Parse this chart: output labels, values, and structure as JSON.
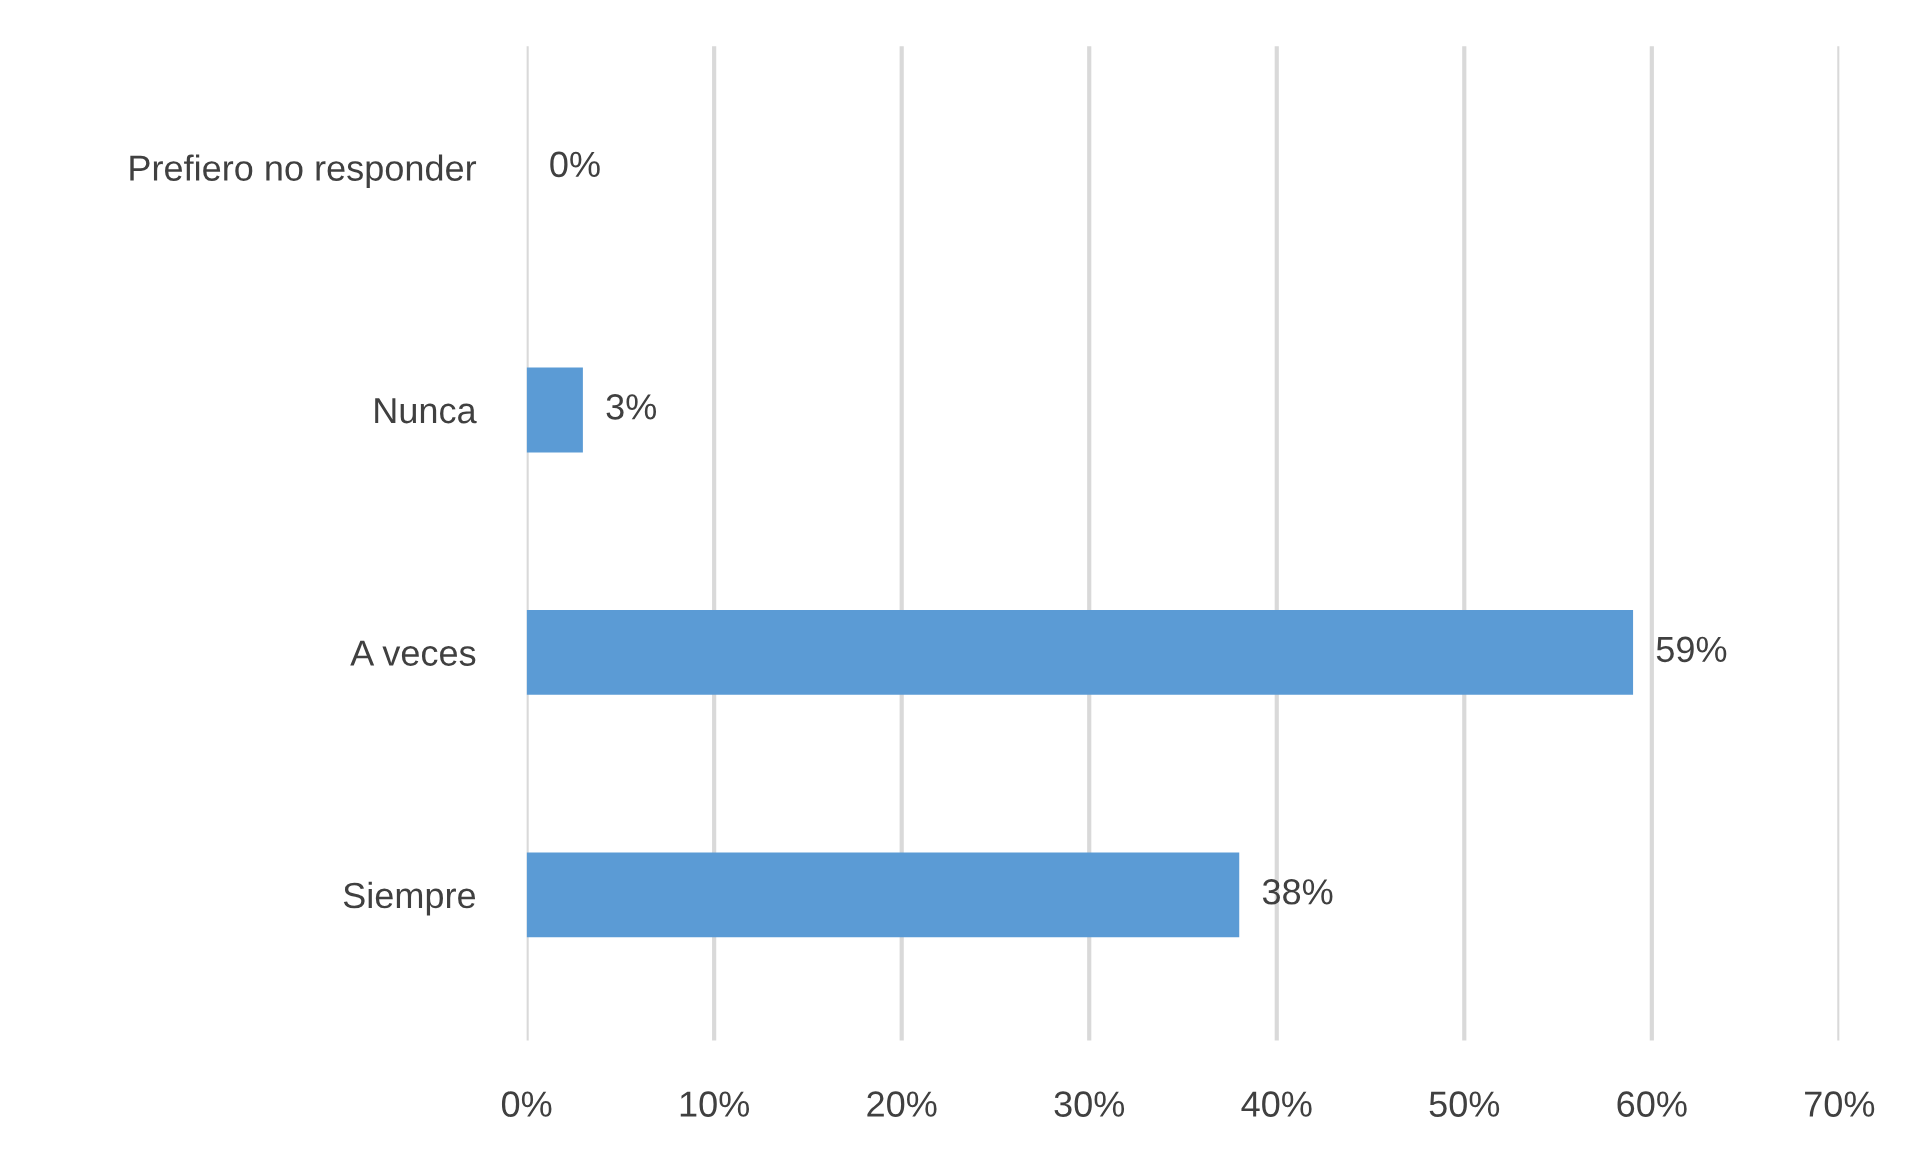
{
  "chart_data": {
    "type": "bar",
    "orientation": "horizontal",
    "categories": [
      "Prefiero no responder",
      "Nunca",
      "A veces",
      "Siempre"
    ],
    "values": [
      0,
      3,
      59,
      38
    ],
    "color": "#5b9bd5",
    "value_labels": [
      "0%",
      "3%",
      "59%",
      "38%"
    ],
    "xlim": [
      0,
      70
    ],
    "xticks": [
      {
        "value": 0,
        "label": "0%"
      },
      {
        "value": 10,
        "label": "10%"
      },
      {
        "value": 20,
        "label": "20%"
      },
      {
        "value": 30,
        "label": "30%"
      },
      {
        "value": 40,
        "label": "40%"
      },
      {
        "value": 50,
        "label": "50%"
      },
      {
        "value": 60,
        "label": "60%"
      },
      {
        "value": 70,
        "label": "70%"
      }
    ],
    "grid": "x",
    "legend": false
  }
}
